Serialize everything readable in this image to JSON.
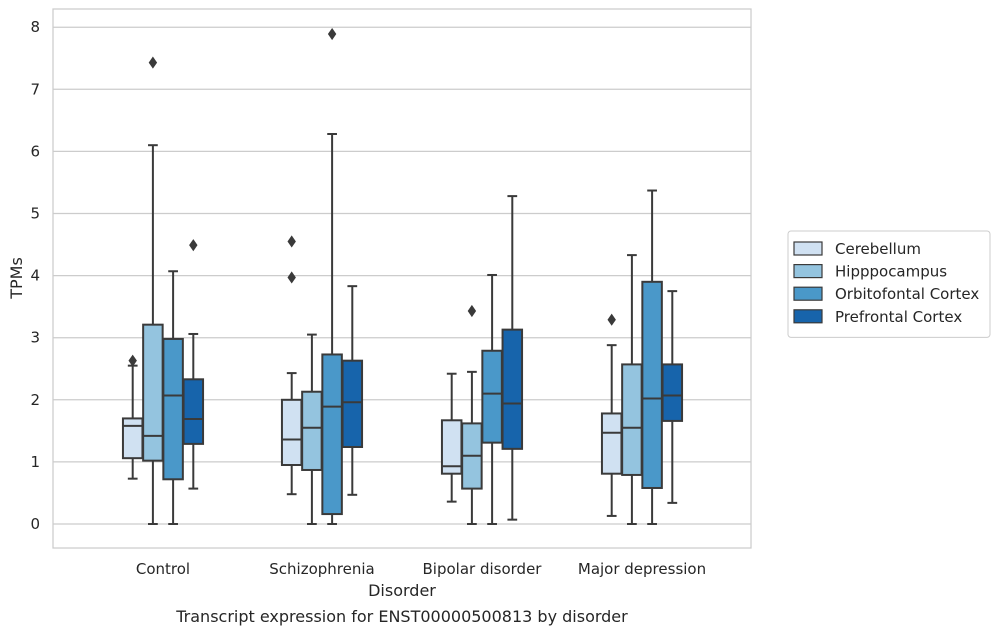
{
  "chart_data": {
    "type": "boxplot",
    "caption": "Transcript expression for ENST00000500813 by disorder",
    "xlabel": "Disorder",
    "ylabel": "TPMs",
    "ylim": [
      -0.38,
      8.3
    ],
    "yticks": [
      0,
      1,
      2,
      3,
      4,
      5,
      6,
      7,
      8
    ],
    "grid": true,
    "legend_position": "right",
    "categories": [
      "Control",
      "Schizophrenia",
      "Bipolar disorder",
      "Major depression"
    ],
    "series": [
      {
        "name": "Cerebellum",
        "color": "#d0e1f2",
        "boxes": [
          {
            "whislo": 0.73,
            "q1": 1.06,
            "med": 1.58,
            "q3": 1.7,
            "whishi": 2.55,
            "fliers": [
              2.63
            ]
          },
          {
            "whislo": 0.48,
            "q1": 0.95,
            "med": 1.36,
            "q3": 2.0,
            "whishi": 2.43,
            "fliers": [
              3.97,
              4.55
            ]
          },
          {
            "whislo": 0.36,
            "q1": 0.81,
            "med": 0.93,
            "q3": 1.67,
            "whishi": 2.42,
            "fliers": []
          },
          {
            "whislo": 0.13,
            "q1": 0.81,
            "med": 1.47,
            "q3": 1.78,
            "whishi": 2.88,
            "fliers": [
              3.29
            ]
          }
        ]
      },
      {
        "name": "Hipppocampus",
        "color": "#94c4df",
        "boxes": [
          {
            "whislo": 0.0,
            "q1": 1.02,
            "med": 1.42,
            "q3": 3.21,
            "whishi": 6.1,
            "fliers": [
              7.43
            ]
          },
          {
            "whislo": 0.0,
            "q1": 0.87,
            "med": 1.55,
            "q3": 2.13,
            "whishi": 3.05,
            "fliers": []
          },
          {
            "whislo": 0.0,
            "q1": 0.57,
            "med": 1.1,
            "q3": 1.62,
            "whishi": 2.45,
            "fliers": [
              3.43
            ]
          },
          {
            "whislo": 0.0,
            "q1": 0.79,
            "med": 1.55,
            "q3": 2.57,
            "whishi": 4.33,
            "fliers": []
          }
        ]
      },
      {
        "name": "Orbitofontal Cortex",
        "color": "#4a98c9",
        "boxes": [
          {
            "whislo": 0.0,
            "q1": 0.72,
            "med": 2.07,
            "q3": 2.98,
            "whishi": 4.07,
            "fliers": []
          },
          {
            "whislo": 0.0,
            "q1": 0.16,
            "med": 1.89,
            "q3": 2.73,
            "whishi": 6.28,
            "fliers": [
              7.89
            ]
          },
          {
            "whislo": 0.0,
            "q1": 1.31,
            "med": 2.1,
            "q3": 2.79,
            "whishi": 4.01,
            "fliers": []
          },
          {
            "whislo": 0.0,
            "q1": 0.58,
            "med": 2.02,
            "q3": 3.9,
            "whishi": 5.37,
            "fliers": []
          }
        ]
      },
      {
        "name": "Prefrontal Cortex",
        "color": "#1764ab",
        "boxes": [
          {
            "whislo": 0.57,
            "q1": 1.29,
            "med": 1.69,
            "q3": 2.33,
            "whishi": 3.06,
            "fliers": [
              4.49
            ]
          },
          {
            "whislo": 0.47,
            "q1": 1.24,
            "med": 1.96,
            "q3": 2.63,
            "whishi": 3.83,
            "fliers": []
          },
          {
            "whislo": 0.07,
            "q1": 1.21,
            "med": 1.94,
            "q3": 3.13,
            "whishi": 5.28,
            "fliers": []
          },
          {
            "whislo": 0.34,
            "q1": 1.66,
            "med": 2.07,
            "q3": 2.57,
            "whishi": 3.75,
            "fliers": []
          }
        ]
      }
    ]
  }
}
